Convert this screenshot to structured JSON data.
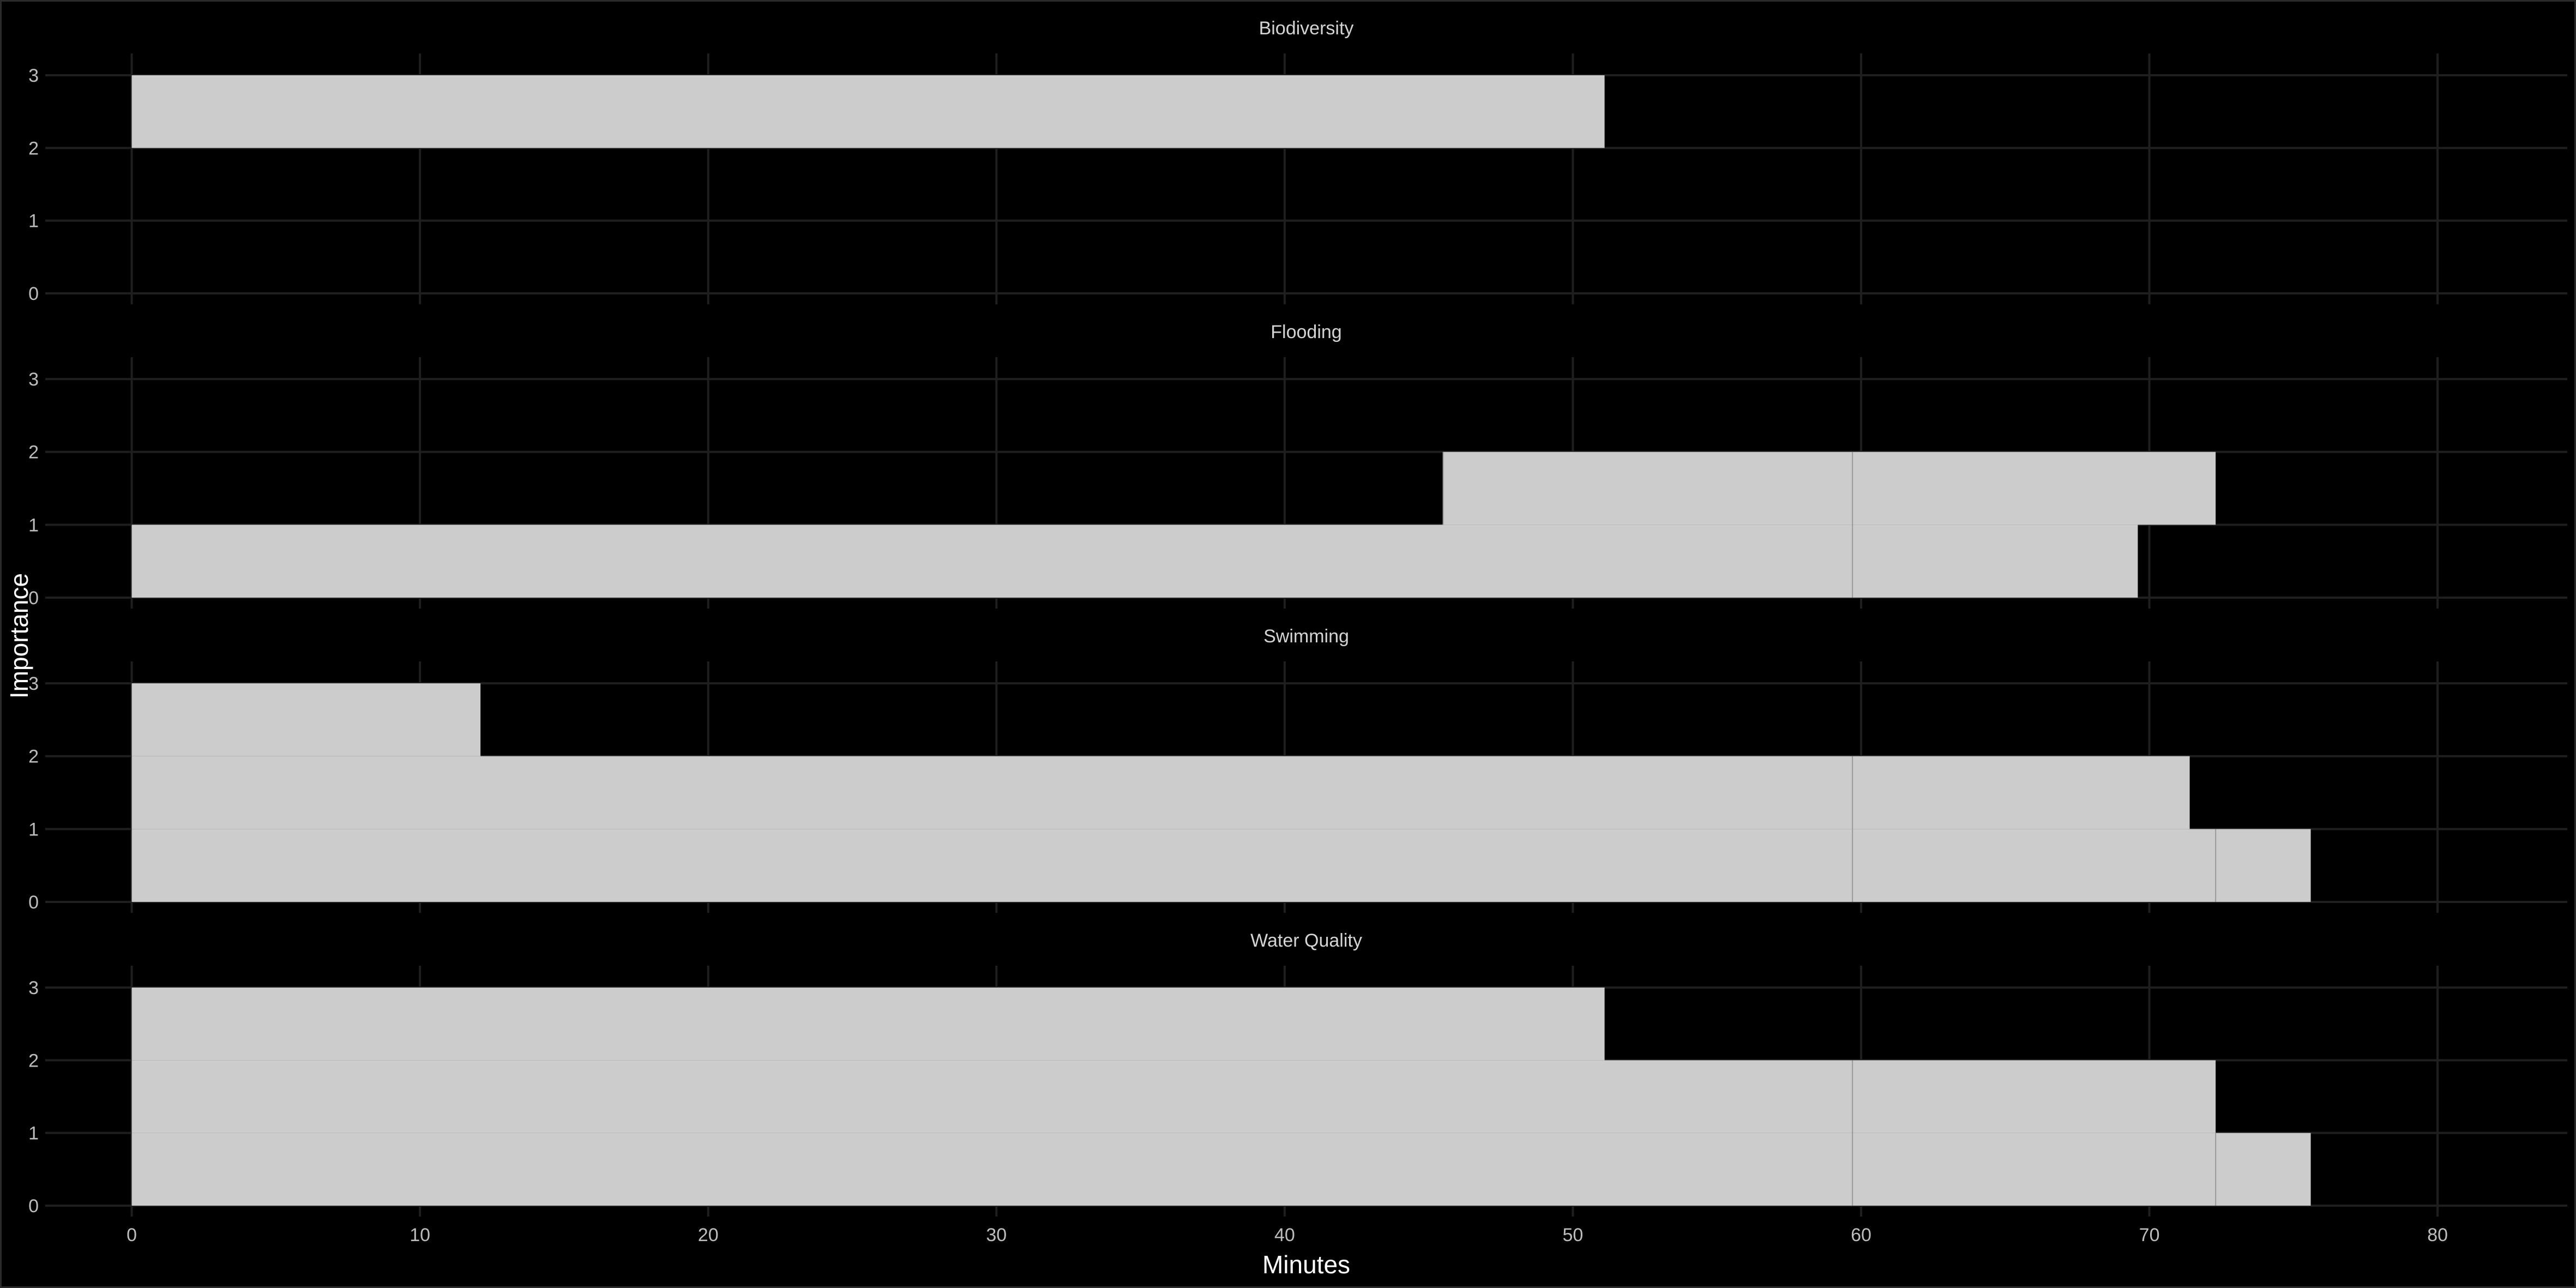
{
  "chart_data": {
    "type": "bar",
    "orientation": "horizontal-stacked-steps",
    "xlabel": "Minutes",
    "ylabel": "Importance",
    "xlim": [
      -3,
      84.5
    ],
    "x_ticks": [
      0,
      10,
      20,
      30,
      40,
      50,
      60,
      70,
      80
    ],
    "y_ticks": [
      0,
      1,
      2,
      3
    ],
    "ylim": [
      -0.15,
      3.3
    ],
    "grid": true,
    "colors": {
      "background": "#000000",
      "bar": "#cccccc",
      "grid": "#1f1f1f",
      "text": "#bdbdbd"
    },
    "facets": [
      {
        "title": "Biodiversity",
        "segments": [
          {
            "importance_range": [
              2,
              3
            ],
            "start": 0,
            "end": 51.1
          }
        ]
      },
      {
        "title": "Flooding",
        "segments": [
          {
            "importance_range": [
              0,
              1
            ],
            "start": 0,
            "end": 59.7
          },
          {
            "importance_range": [
              0,
              1
            ],
            "start": 59.7,
            "end": 69.6
          },
          {
            "importance_range": [
              1,
              2
            ],
            "start": 45.5,
            "end": 59.7
          },
          {
            "importance_range": [
              1,
              2
            ],
            "start": 59.7,
            "end": 72.3
          }
        ]
      },
      {
        "title": "Swimming",
        "segments": [
          {
            "importance_range": [
              0,
              1
            ],
            "start": 0,
            "end": 59.7
          },
          {
            "importance_range": [
              0,
              1
            ],
            "start": 59.7,
            "end": 72.3
          },
          {
            "importance_range": [
              0,
              1
            ],
            "start": 72.3,
            "end": 75.6
          },
          {
            "importance_range": [
              1,
              2
            ],
            "start": 0,
            "end": 59.7
          },
          {
            "importance_range": [
              1,
              2
            ],
            "start": 59.7,
            "end": 71.4
          },
          {
            "importance_range": [
              2,
              3
            ],
            "start": 0,
            "end": 12.1
          }
        ]
      },
      {
        "title": "Water Quality",
        "segments": [
          {
            "importance_range": [
              0,
              1
            ],
            "start": 0,
            "end": 59.7
          },
          {
            "importance_range": [
              0,
              1
            ],
            "start": 59.7,
            "end": 72.3
          },
          {
            "importance_range": [
              0,
              1
            ],
            "start": 72.3,
            "end": 75.6
          },
          {
            "importance_range": [
              1,
              2
            ],
            "start": 0,
            "end": 59.7
          },
          {
            "importance_range": [
              1,
              2
            ],
            "start": 59.7,
            "end": 72.3
          },
          {
            "importance_range": [
              2,
              3
            ],
            "start": 0,
            "end": 51.1
          }
        ]
      }
    ]
  }
}
